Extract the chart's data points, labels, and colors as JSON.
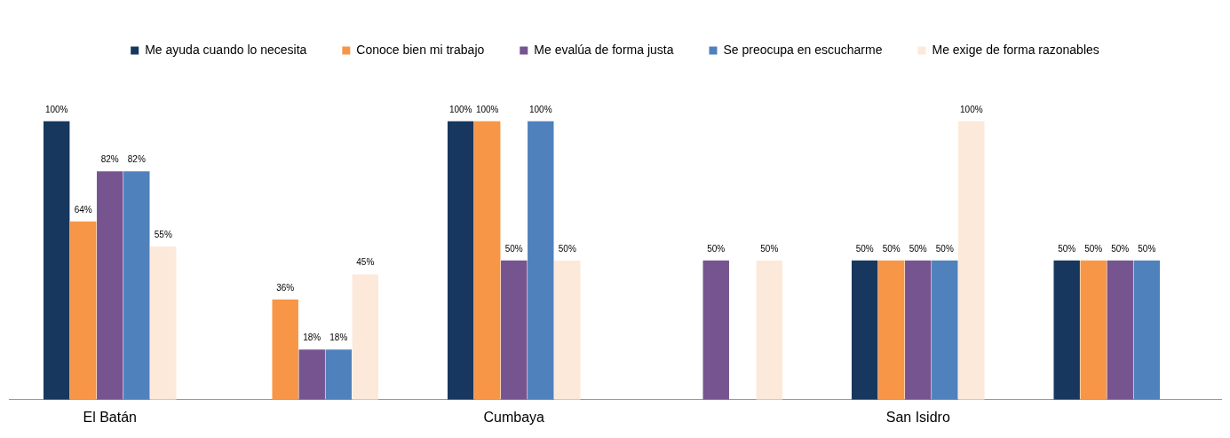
{
  "chart_data": {
    "type": "bar",
    "categories": [
      "El Batán",
      null,
      "Cumbaya",
      null,
      "San Isidro",
      null
    ],
    "series": [
      {
        "name": "Me ayuda cuando lo necesita",
        "color": "#17375e",
        "values": [
          100,
          null,
          100,
          null,
          50,
          50
        ],
        "value_labels": [
          "100%",
          null,
          "100%",
          null,
          "50%",
          "50%"
        ]
      },
      {
        "name": "Conoce bien mi trabajo",
        "color": "#f79646",
        "values": [
          64,
          36,
          100,
          null,
          50,
          50
        ],
        "value_labels": [
          "64%",
          "36%",
          "100%",
          null,
          "50%",
          "50%"
        ]
      },
      {
        "name": "Me evalúa de forma justa",
        "color": "#76548f",
        "values": [
          82,
          18,
          50,
          50,
          50,
          50
        ],
        "value_labels": [
          "82%",
          "18%",
          "50%",
          "50%",
          "50%",
          "50%"
        ]
      },
      {
        "name": "Se preocupa en escucharme",
        "color": "#4f81bd",
        "values": [
          82,
          18,
          100,
          null,
          50,
          50
        ],
        "value_labels": [
          "82%",
          "18%",
          "100%",
          null,
          "50%",
          "50%"
        ]
      },
      {
        "name": "Me exige de forma razonables",
        "color": "#fde9d9",
        "values": [
          55,
          45,
          50,
          50,
          100,
          null
        ],
        "value_labels": [
          "55%",
          "45%",
          "50%",
          "50%",
          "100%",
          null
        ]
      }
    ],
    "legend": "top",
    "grid": false,
    "tick_labels": "x"
  }
}
